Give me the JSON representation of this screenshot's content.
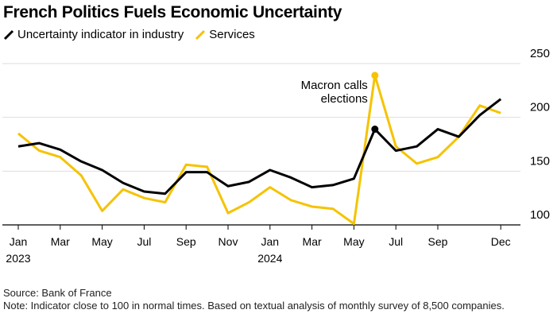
{
  "chart_data": {
    "type": "line",
    "title": "French Politics Fuels Economic Uncertainty",
    "xlabel": "",
    "ylabel": "",
    "ylim": [
      100,
      250
    ],
    "yticks": [
      "100",
      "150",
      "200",
      "250"
    ],
    "xticks": [
      {
        "m": 0,
        "label": "Jan",
        "sub": "2023"
      },
      {
        "m": 2,
        "label": "Mar"
      },
      {
        "m": 4,
        "label": "May"
      },
      {
        "m": 6,
        "label": "Jul"
      },
      {
        "m": 8,
        "label": "Sep"
      },
      {
        "m": 10,
        "label": "Nov"
      },
      {
        "m": 12,
        "label": "Jan",
        "sub": "2024"
      },
      {
        "m": 14,
        "label": "Mar"
      },
      {
        "m": 16,
        "label": "May"
      },
      {
        "m": 18,
        "label": "Jul"
      },
      {
        "m": 20,
        "label": "Sep"
      },
      {
        "m": 23,
        "label": "Dec"
      }
    ],
    "grid": true,
    "legend_position": "top-left",
    "series": [
      {
        "name": "Uncertainty indicator in industry",
        "color": "#000000",
        "values": [
          173,
          176,
          170,
          159,
          151,
          139,
          131,
          129,
          149,
          149,
          136,
          140,
          151,
          144,
          135,
          137,
          143,
          189,
          169,
          173,
          189,
          182,
          202,
          217
        ]
      },
      {
        "name": "Services",
        "color": "#f5c300",
        "values": [
          185,
          169,
          163,
          146,
          113,
          133,
          125,
          121,
          156,
          154,
          111,
          121,
          135,
          123,
          117,
          115,
          101,
          239,
          173,
          157,
          163,
          182,
          211,
          204
        ]
      }
    ],
    "annotation": {
      "lines": [
        "Macron calls",
        "elections"
      ],
      "month": 17
    }
  },
  "footer": {
    "source": "Source: Bank of France",
    "note": "Note: Indicator close to 100 in normal times. Based on textual analysis of monthly survey of 8,500 companies."
  }
}
